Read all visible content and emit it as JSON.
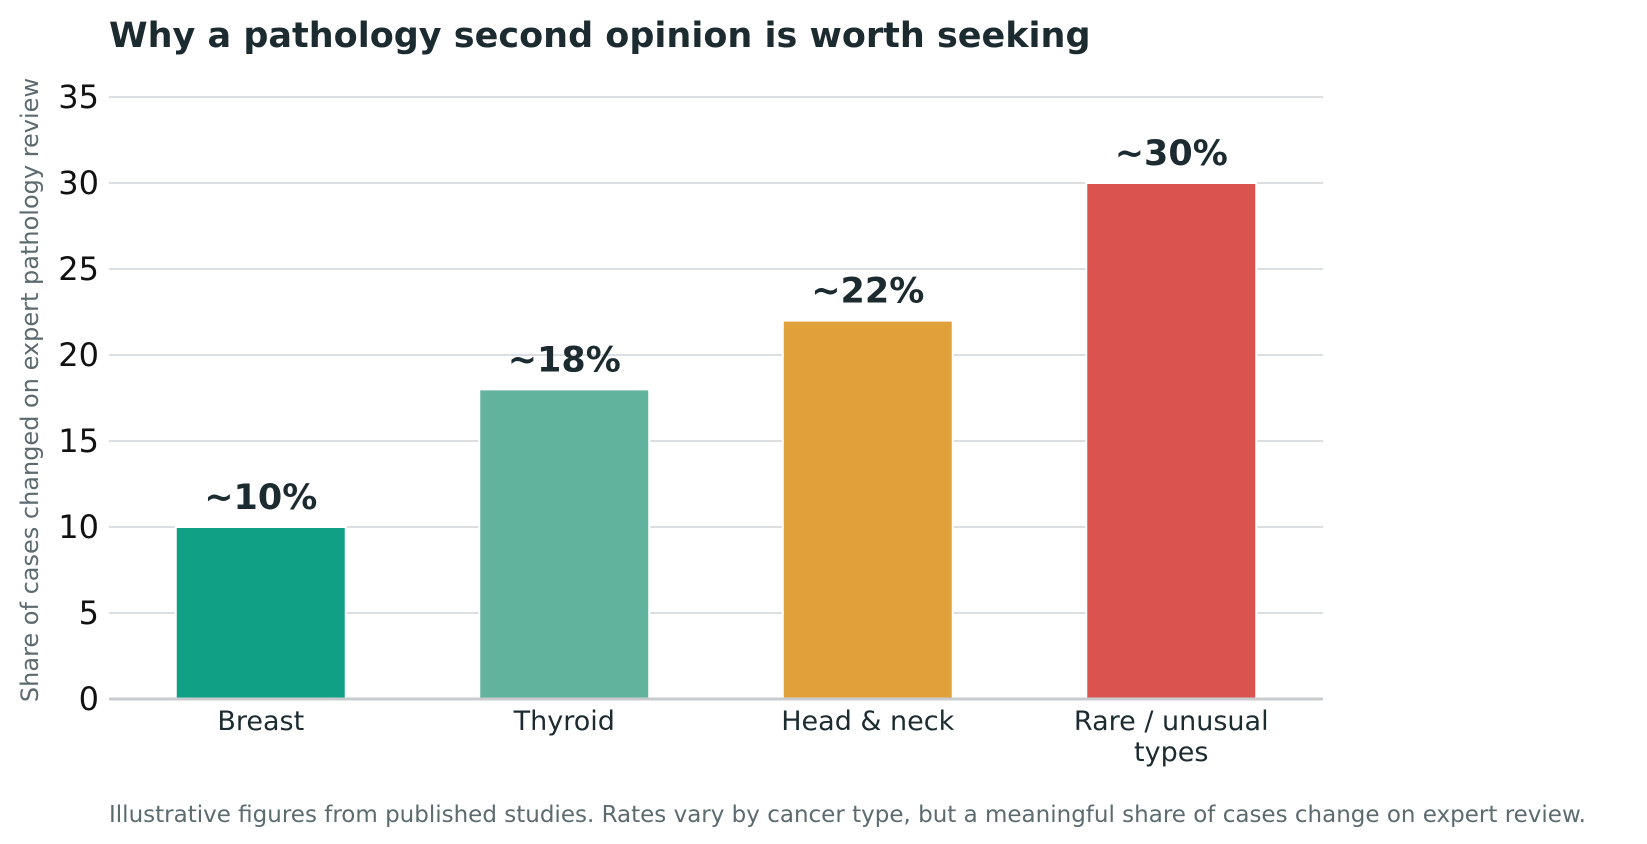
{
  "chart_data": {
    "type": "bar",
    "title": "Why a pathology second opinion is worth seeking",
    "xlabel": "",
    "ylabel": "Share of cases changed on expert pathology review",
    "categories": [
      [
        "Breast"
      ],
      [
        "Thyroid"
      ],
      [
        "Head & neck"
      ],
      [
        "Rare / unusual",
        "types"
      ]
    ],
    "values": [
      10,
      18,
      22,
      30
    ],
    "data_labels": [
      "~10%",
      "~18%",
      "~22%",
      "~30%"
    ],
    "colors": [
      "#0fa086",
      "#62b39d",
      "#e0a03a",
      "#db534e"
    ],
    "ylim": [
      0,
      35
    ],
    "yticks": [
      0,
      5,
      10,
      15,
      20,
      25,
      30,
      35
    ],
    "grid": true,
    "legend": "none",
    "footnote": "Illustrative figures from published studies. Rates vary by cancer type, but a meaningful share of cases change on expert review."
  }
}
